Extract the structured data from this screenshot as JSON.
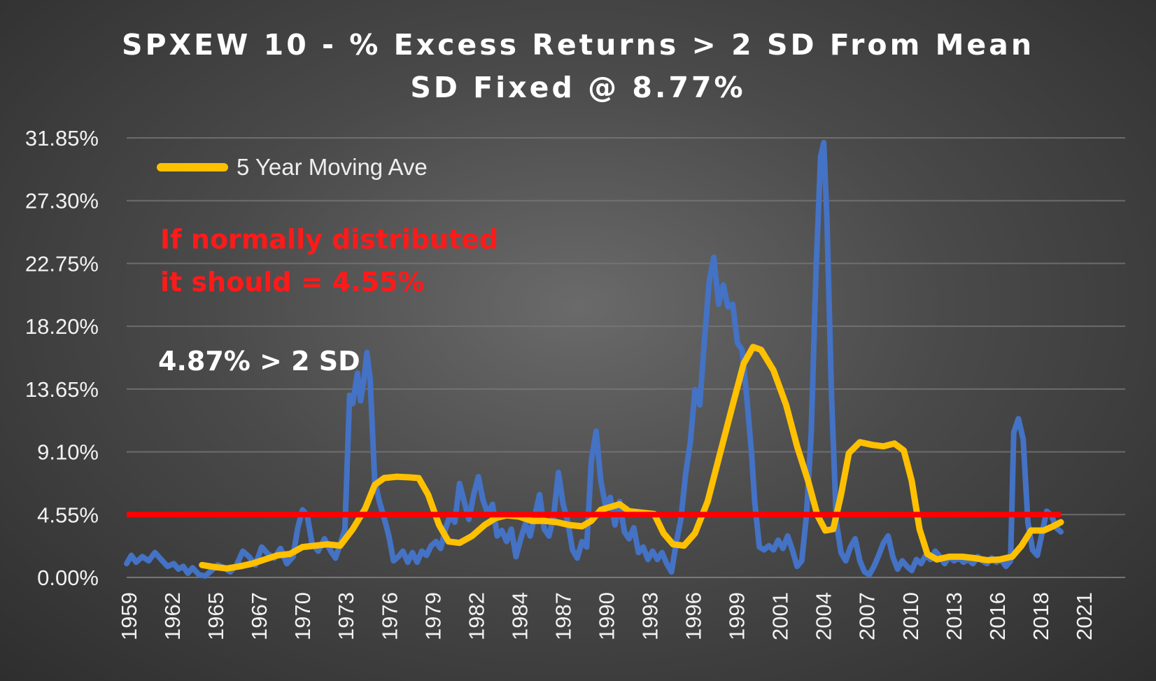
{
  "chart_data": {
    "type": "line",
    "title": "SPXEW 10 - % Excess Returns > 2 SD From Mean",
    "subtitle": "SD Fixed @ 8.77%",
    "xlabel": "",
    "ylabel": "",
    "ylim": [
      0,
      31.85
    ],
    "yticks": [
      "0.00%",
      "4.55%",
      "9.10%",
      "13.65%",
      "18.20%",
      "22.75%",
      "27.30%",
      "31.85%"
    ],
    "xticks": [
      "1959",
      "1962",
      "1965",
      "1967",
      "1970",
      "1973",
      "1976",
      "1979",
      "1982",
      "1984",
      "1987",
      "1990",
      "1993",
      "1996",
      "1999",
      "2001",
      "2004",
      "2007",
      "2010",
      "2013",
      "2016",
      "2018",
      "2021"
    ],
    "xlim": [
      1959.0,
      2022.6
    ],
    "grid": true,
    "legend_position": "top-left",
    "series": [
      {
        "name": "",
        "color": "#4472c4",
        "points": [
          [
            1959.0,
            1.0
          ],
          [
            1959.3,
            1.6
          ],
          [
            1959.6,
            1.1
          ],
          [
            1960.0,
            1.5
          ],
          [
            1960.4,
            1.2
          ],
          [
            1960.8,
            1.8
          ],
          [
            1961.2,
            1.3
          ],
          [
            1961.6,
            0.8
          ],
          [
            1962.0,
            1.0
          ],
          [
            1962.3,
            0.6
          ],
          [
            1962.6,
            0.8
          ],
          [
            1962.9,
            0.3
          ],
          [
            1963.2,
            0.7
          ],
          [
            1963.6,
            0.2
          ],
          [
            1964.0,
            0.1
          ],
          [
            1964.4,
            0.5
          ],
          [
            1964.8,
            0.9
          ],
          [
            1965.2,
            0.7
          ],
          [
            1965.6,
            0.4
          ],
          [
            1966.0,
            0.9
          ],
          [
            1966.4,
            1.9
          ],
          [
            1966.8,
            1.5
          ],
          [
            1967.2,
            0.9
          ],
          [
            1967.6,
            2.2
          ],
          [
            1968.0,
            1.7
          ],
          [
            1968.4,
            1.4
          ],
          [
            1968.8,
            2.1
          ],
          [
            1969.2,
            1.0
          ],
          [
            1969.6,
            1.5
          ],
          [
            1969.9,
            3.6
          ],
          [
            1970.2,
            4.9
          ],
          [
            1970.5,
            4.5
          ],
          [
            1970.8,
            2.5
          ],
          [
            1971.2,
            1.9
          ],
          [
            1971.6,
            2.8
          ],
          [
            1972.0,
            1.9
          ],
          [
            1972.3,
            1.4
          ],
          [
            1972.6,
            2.4
          ],
          [
            1972.9,
            3.5
          ],
          [
            1973.2,
            13.2
          ],
          [
            1973.4,
            12.6
          ],
          [
            1973.7,
            14.8
          ],
          [
            1973.9,
            12.8
          ],
          [
            1974.1,
            14.2
          ],
          [
            1974.3,
            16.3
          ],
          [
            1974.5,
            14.5
          ],
          [
            1974.8,
            7.0
          ],
          [
            1975.1,
            5.5
          ],
          [
            1975.4,
            4.3
          ],
          [
            1975.7,
            3.0
          ],
          [
            1976.0,
            1.2
          ],
          [
            1976.3,
            1.5
          ],
          [
            1976.6,
            1.9
          ],
          [
            1976.9,
            1.1
          ],
          [
            1977.2,
            1.8
          ],
          [
            1977.5,
            1.1
          ],
          [
            1977.8,
            1.9
          ],
          [
            1978.1,
            1.6
          ],
          [
            1978.4,
            2.3
          ],
          [
            1978.7,
            2.6
          ],
          [
            1979.0,
            2.1
          ],
          [
            1979.3,
            3.5
          ],
          [
            1979.6,
            4.5
          ],
          [
            1979.9,
            4.0
          ],
          [
            1980.2,
            6.8
          ],
          [
            1980.5,
            5.5
          ],
          [
            1980.8,
            4.2
          ],
          [
            1981.1,
            6.0
          ],
          [
            1981.4,
            7.3
          ],
          [
            1981.7,
            5.6
          ],
          [
            1982.0,
            4.6
          ],
          [
            1982.3,
            5.3
          ],
          [
            1982.6,
            3.0
          ],
          [
            1982.9,
            3.4
          ],
          [
            1983.2,
            2.6
          ],
          [
            1983.5,
            3.5
          ],
          [
            1983.8,
            1.5
          ],
          [
            1984.1,
            2.8
          ],
          [
            1984.4,
            3.9
          ],
          [
            1984.7,
            3.0
          ],
          [
            1985.0,
            4.5
          ],
          [
            1985.3,
            6.0
          ],
          [
            1985.6,
            3.5
          ],
          [
            1985.9,
            3.0
          ],
          [
            1986.2,
            4.5
          ],
          [
            1986.5,
            7.6
          ],
          [
            1986.8,
            5.3
          ],
          [
            1987.1,
            4.0
          ],
          [
            1987.4,
            2.0
          ],
          [
            1987.7,
            1.4
          ],
          [
            1988.0,
            2.6
          ],
          [
            1988.3,
            2.2
          ],
          [
            1988.6,
            8.5
          ],
          [
            1988.9,
            10.6
          ],
          [
            1989.2,
            7.0
          ],
          [
            1989.5,
            5.2
          ],
          [
            1989.8,
            5.8
          ],
          [
            1990.1,
            3.8
          ],
          [
            1990.4,
            5.5
          ],
          [
            1990.7,
            3.3
          ],
          [
            1991.0,
            2.8
          ],
          [
            1991.3,
            3.6
          ],
          [
            1991.6,
            1.8
          ],
          [
            1991.9,
            2.2
          ],
          [
            1992.2,
            1.3
          ],
          [
            1992.5,
            1.9
          ],
          [
            1992.8,
            1.3
          ],
          [
            1993.1,
            1.8
          ],
          [
            1993.4,
            1.0
          ],
          [
            1993.7,
            0.4
          ],
          [
            1994.0,
            2.5
          ],
          [
            1994.3,
            4.2
          ],
          [
            1994.6,
            7.5
          ],
          [
            1994.9,
            9.8
          ],
          [
            1995.2,
            13.6
          ],
          [
            1995.5,
            12.5
          ],
          [
            1995.8,
            17.2
          ],
          [
            1996.1,
            21.4
          ],
          [
            1996.4,
            23.2
          ],
          [
            1996.7,
            19.8
          ],
          [
            1997.0,
            21.2
          ],
          [
            1997.3,
            19.6
          ],
          [
            1997.6,
            19.8
          ],
          [
            1997.9,
            17.0
          ],
          [
            1998.2,
            16.5
          ],
          [
            1998.5,
            13.0
          ],
          [
            1998.8,
            9.0
          ],
          [
            1999.0,
            5.5
          ],
          [
            1999.3,
            2.2
          ],
          [
            1999.6,
            2.0
          ],
          [
            1999.9,
            2.3
          ],
          [
            2000.2,
            2.0
          ],
          [
            2000.5,
            2.7
          ],
          [
            2000.8,
            2.1
          ],
          [
            2001.1,
            3.0
          ],
          [
            2001.4,
            2.0
          ],
          [
            2001.7,
            0.8
          ],
          [
            2002.0,
            1.2
          ],
          [
            2002.3,
            4.5
          ],
          [
            2002.6,
            10.5
          ],
          [
            2002.9,
            22.0
          ],
          [
            2003.2,
            30.5
          ],
          [
            2003.4,
            31.5
          ],
          [
            2003.6,
            26.0
          ],
          [
            2003.9,
            13.0
          ],
          [
            2004.2,
            4.0
          ],
          [
            2004.5,
            1.8
          ],
          [
            2004.8,
            1.2
          ],
          [
            2005.1,
            2.2
          ],
          [
            2005.4,
            2.8
          ],
          [
            2005.7,
            1.2
          ],
          [
            2006.0,
            0.4
          ],
          [
            2006.3,
            0.2
          ],
          [
            2006.6,
            0.8
          ],
          [
            2006.9,
            1.6
          ],
          [
            2007.2,
            2.5
          ],
          [
            2007.5,
            3.0
          ],
          [
            2007.8,
            1.5
          ],
          [
            2008.1,
            0.6
          ],
          [
            2008.4,
            1.2
          ],
          [
            2008.7,
            0.8
          ],
          [
            2009.0,
            0.5
          ],
          [
            2009.3,
            1.3
          ],
          [
            2009.6,
            1.0
          ],
          [
            2009.9,
            1.6
          ],
          [
            2010.2,
            1.3
          ],
          [
            2010.5,
            1.9
          ],
          [
            2010.8,
            1.5
          ],
          [
            2011.1,
            1.0
          ],
          [
            2011.4,
            1.5
          ],
          [
            2011.7,
            1.2
          ],
          [
            2012.0,
            1.4
          ],
          [
            2012.3,
            1.1
          ],
          [
            2012.6,
            1.3
          ],
          [
            2012.9,
            1.0
          ],
          [
            2013.2,
            1.5
          ],
          [
            2013.5,
            1.2
          ],
          [
            2013.8,
            1.0
          ],
          [
            2014.1,
            1.4
          ],
          [
            2014.4,
            1.1
          ],
          [
            2014.7,
            1.3
          ],
          [
            2015.0,
            0.8
          ],
          [
            2015.3,
            1.2
          ],
          [
            2015.5,
            10.5
          ],
          [
            2015.8,
            11.5
          ],
          [
            2016.1,
            10.0
          ],
          [
            2016.4,
            4.0
          ],
          [
            2016.7,
            2.0
          ],
          [
            2017.0,
            1.6
          ],
          [
            2017.3,
            3.2
          ],
          [
            2017.6,
            4.8
          ],
          [
            2017.9,
            4.5
          ],
          [
            2018.2,
            3.6
          ],
          [
            2018.5,
            3.3
          ]
        ]
      },
      {
        "name": "5 Year Moving Ave",
        "color": "#ffc000",
        "points": [
          [
            1963.8,
            0.9
          ],
          [
            1964.6,
            0.75
          ],
          [
            1965.4,
            0.65
          ],
          [
            1966.2,
            0.8
          ],
          [
            1967.0,
            1.0
          ],
          [
            1967.8,
            1.3
          ],
          [
            1968.6,
            1.6
          ],
          [
            1969.4,
            1.7
          ],
          [
            1970.2,
            2.2
          ],
          [
            1971.0,
            2.3
          ],
          [
            1971.8,
            2.4
          ],
          [
            1972.6,
            2.3
          ],
          [
            1973.4,
            3.5
          ],
          [
            1974.2,
            5.0
          ],
          [
            1974.8,
            6.7
          ],
          [
            1975.4,
            7.2
          ],
          [
            1976.2,
            7.3
          ],
          [
            1977.0,
            7.25
          ],
          [
            1977.6,
            7.2
          ],
          [
            1978.2,
            6.0
          ],
          [
            1978.9,
            3.8
          ],
          [
            1979.5,
            2.6
          ],
          [
            1980.2,
            2.5
          ],
          [
            1981.0,
            3.0
          ],
          [
            1981.8,
            3.8
          ],
          [
            1982.5,
            4.3
          ],
          [
            1983.2,
            4.5
          ],
          [
            1984.0,
            4.4
          ],
          [
            1984.8,
            4.1
          ],
          [
            1985.6,
            4.1
          ],
          [
            1986.4,
            4.0
          ],
          [
            1987.2,
            3.8
          ],
          [
            1988.0,
            3.7
          ],
          [
            1988.6,
            4.1
          ],
          [
            1989.2,
            4.9
          ],
          [
            1989.8,
            5.1
          ],
          [
            1990.4,
            5.3
          ],
          [
            1991.0,
            4.8
          ],
          [
            1991.8,
            4.7
          ],
          [
            1992.6,
            4.6
          ],
          [
            1993.2,
            3.2
          ],
          [
            1993.8,
            2.4
          ],
          [
            1994.5,
            2.3
          ],
          [
            1995.2,
            3.2
          ],
          [
            1996.0,
            5.5
          ],
          [
            1996.8,
            9.0
          ],
          [
            1997.6,
            12.5
          ],
          [
            1998.3,
            15.5
          ],
          [
            1998.9,
            16.7
          ],
          [
            1999.4,
            16.5
          ],
          [
            2000.2,
            15.0
          ],
          [
            2001.0,
            12.5
          ],
          [
            2001.7,
            9.5
          ],
          [
            2002.4,
            7.0
          ],
          [
            2003.0,
            4.5
          ],
          [
            2003.5,
            3.4
          ],
          [
            2004.0,
            3.5
          ],
          [
            2004.5,
            6.0
          ],
          [
            2005.0,
            9.0
          ],
          [
            2005.7,
            9.8
          ],
          [
            2006.5,
            9.6
          ],
          [
            2007.2,
            9.5
          ],
          [
            2007.9,
            9.7
          ],
          [
            2008.5,
            9.2
          ],
          [
            2009.0,
            7.0
          ],
          [
            2009.5,
            3.5
          ],
          [
            2010.0,
            1.7
          ],
          [
            2010.6,
            1.3
          ],
          [
            2011.4,
            1.5
          ],
          [
            2012.2,
            1.5
          ],
          [
            2013.0,
            1.4
          ],
          [
            2013.8,
            1.25
          ],
          [
            2014.6,
            1.3
          ],
          [
            2015.4,
            1.5
          ],
          [
            2016.0,
            2.3
          ],
          [
            2016.6,
            3.4
          ],
          [
            2017.4,
            3.4
          ],
          [
            2018.0,
            3.7
          ],
          [
            2018.5,
            4.0
          ]
        ]
      },
      {
        "name": "",
        "color": "#ff0000",
        "points": [
          [
            1959.0,
            4.55
          ],
          [
            2018.5,
            4.55
          ]
        ]
      }
    ],
    "annotations": [
      {
        "text": "If normally distributed",
        "color": "#ff1a1a"
      },
      {
        "text": "it should = 4.55%",
        "color": "#ff1a1a"
      },
      {
        "text": "4.87% > 2 SD",
        "color": "#ffffff"
      }
    ]
  }
}
